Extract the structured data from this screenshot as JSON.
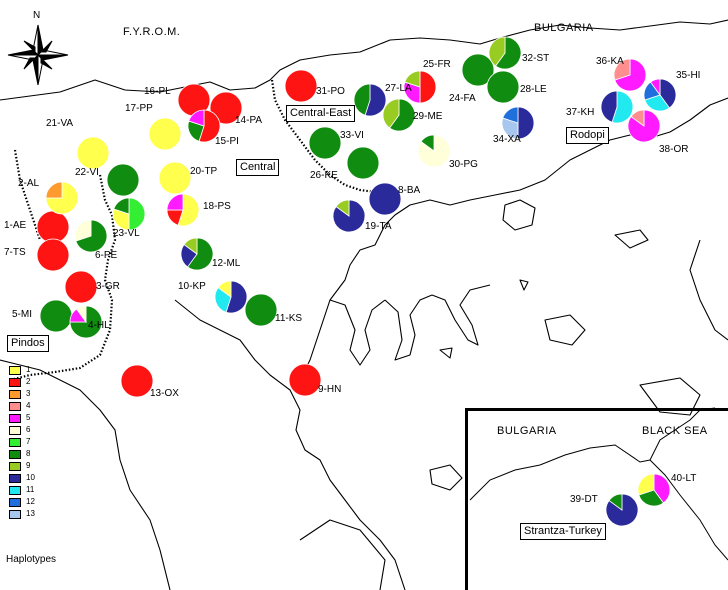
{
  "map": {
    "countries": {
      "fyrom": "F.Y.R.O.M.",
      "bulgaria": "BULGARIA"
    },
    "compass_north": "N",
    "regions": [
      "Central-East",
      "Rodopi",
      "Central",
      "Pindos"
    ],
    "legend_title": "Haplotypes",
    "legend": [
      {
        "label": "1",
        "color": "#ffff4d"
      },
      {
        "label": "2",
        "color": "#ff1414"
      },
      {
        "label": "3",
        "color": "#ff9a2e"
      },
      {
        "label": "4",
        "color": "#ff8f8f"
      },
      {
        "label": "5",
        "color": "#ff1aff"
      },
      {
        "label": "6",
        "color": "#ffffd9"
      },
      {
        "label": "7",
        "color": "#33ee33"
      },
      {
        "label": "8",
        "color": "#108c10"
      },
      {
        "label": "9",
        "color": "#99cc22"
      },
      {
        "label": "10",
        "color": "#2a2a9a"
      },
      {
        "label": "11",
        "color": "#22e8f0"
      },
      {
        "label": "12",
        "color": "#1f6fdd"
      },
      {
        "label": "13",
        "color": "#a7c7ee"
      }
    ],
    "sites": [
      {
        "label": "1-AE",
        "haplotypes": [
          {
            "h": 2,
            "f": 1
          }
        ]
      },
      {
        "label": "7-TS",
        "haplotypes": [
          {
            "h": 2,
            "f": 1
          }
        ]
      },
      {
        "label": "2-AL",
        "haplotypes": [
          {
            "h": 1,
            "f": 0.75
          },
          {
            "h": 3,
            "f": 0.25
          }
        ]
      },
      {
        "label": "3-GR",
        "haplotypes": [
          {
            "h": 2,
            "f": 1
          }
        ]
      },
      {
        "label": "5-MI",
        "haplotypes": [
          {
            "h": 8,
            "f": 1
          }
        ]
      },
      {
        "label": "4-HL",
        "haplotypes": [
          {
            "h": 8,
            "f": 0.75
          },
          {
            "h": 5,
            "f": 0.15
          },
          {
            "h": 6,
            "f": 0.1
          }
        ]
      },
      {
        "label": "6-PE",
        "haplotypes": [
          {
            "h": 8,
            "f": 0.7
          },
          {
            "h": 6,
            "f": 0.3
          }
        ]
      },
      {
        "label": "21-VA",
        "haplotypes": [
          {
            "h": 1,
            "f": 1
          }
        ]
      },
      {
        "label": "22-VI",
        "haplotypes": [
          {
            "h": 8,
            "f": 1
          }
        ]
      },
      {
        "label": "23-VL",
        "haplotypes": [
          {
            "h": 7,
            "f": 0.5
          },
          {
            "h": 1,
            "f": 0.3
          },
          {
            "h": 8,
            "f": 0.2
          }
        ]
      },
      {
        "label": "13-OX",
        "haplotypes": [
          {
            "h": 2,
            "f": 1
          }
        ]
      },
      {
        "label": "16-PL",
        "haplotypes": [
          {
            "h": 2,
            "f": 1
          }
        ]
      },
      {
        "label": "17-PP",
        "haplotypes": [
          {
            "h": 1,
            "f": 1
          }
        ]
      },
      {
        "label": "14-PA",
        "haplotypes": [
          {
            "h": 2,
            "f": 1
          }
        ]
      },
      {
        "label": "15-PI",
        "haplotypes": [
          {
            "h": 2,
            "f": 0.55
          },
          {
            "h": 8,
            "f": 0.25
          },
          {
            "h": 5,
            "f": 0.2
          }
        ]
      },
      {
        "label": "20-TP",
        "haplotypes": [
          {
            "h": 1,
            "f": 1
          }
        ]
      },
      {
        "label": "18-PS",
        "haplotypes": [
          {
            "h": 1,
            "f": 0.55
          },
          {
            "h": 2,
            "f": 0.2
          },
          {
            "h": 5,
            "f": 0.25
          }
        ]
      },
      {
        "label": "12-ML",
        "haplotypes": [
          {
            "h": 8,
            "f": 0.6
          },
          {
            "h": 10,
            "f": 0.25
          },
          {
            "h": 9,
            "f": 0.15
          }
        ]
      },
      {
        "label": "10-KP",
        "haplotypes": [
          {
            "h": 10,
            "f": 0.55
          },
          {
            "h": 11,
            "f": 0.3
          },
          {
            "h": 1,
            "f": 0.15
          }
        ]
      },
      {
        "label": "11-KS",
        "haplotypes": [
          {
            "h": 8,
            "f": 1
          }
        ]
      },
      {
        "label": "9-HN",
        "haplotypes": [
          {
            "h": 2,
            "f": 1
          }
        ]
      },
      {
        "label": "31-PO",
        "haplotypes": [
          {
            "h": 2,
            "f": 1
          }
        ]
      },
      {
        "label": "33-VI",
        "haplotypes": [
          {
            "h": 8,
            "f": 1
          }
        ]
      },
      {
        "label": "26-KE",
        "haplotypes": [
          {
            "h": 8,
            "f": 1
          }
        ]
      },
      {
        "label": "27-LA",
        "haplotypes": [
          {
            "h": 10,
            "f": 0.55
          },
          {
            "h": 8,
            "f": 0.45
          }
        ]
      },
      {
        "label": "29-ME",
        "haplotypes": [
          {
            "h": 8,
            "f": 0.6
          },
          {
            "h": 9,
            "f": 0.4
          }
        ]
      },
      {
        "label": "25-FR",
        "haplotypes": [
          {
            "h": 2,
            "f": 0.5
          },
          {
            "h": 5,
            "f": 0.3
          },
          {
            "h": 9,
            "f": 0.2
          }
        ]
      },
      {
        "label": "24-FA",
        "haplotypes": [
          {
            "h": 8,
            "f": 1
          }
        ]
      },
      {
        "label": "30-PG",
        "haplotypes": [
          {
            "h": 6,
            "f": 0.85
          },
          {
            "h": 8,
            "f": 0.15
          }
        ]
      },
      {
        "label": "8-BA",
        "haplotypes": [
          {
            "h": 10,
            "f": 1
          }
        ]
      },
      {
        "label": "19-TA",
        "haplotypes": [
          {
            "h": 10,
            "f": 0.85
          },
          {
            "h": 9,
            "f": 0.15
          }
        ]
      },
      {
        "label": "32-ST",
        "haplotypes": [
          {
            "h": 8,
            "f": 0.6
          },
          {
            "h": 9,
            "f": 0.4
          }
        ]
      },
      {
        "label": "28-LE",
        "haplotypes": [
          {
            "h": 8,
            "f": 1
          }
        ]
      },
      {
        "label": "34-XA",
        "haplotypes": [
          {
            "h": 10,
            "f": 0.5
          },
          {
            "h": 13,
            "f": 0.3
          },
          {
            "h": 12,
            "f": 0.2
          }
        ]
      },
      {
        "label": "36-KA",
        "haplotypes": [
          {
            "h": 5,
            "f": 0.7
          },
          {
            "h": 4,
            "f": 0.3
          }
        ]
      },
      {
        "label": "35-HI",
        "haplotypes": [
          {
            "h": 10,
            "f": 0.4
          },
          {
            "h": 11,
            "f": 0.3
          },
          {
            "h": 12,
            "f": 0.2
          },
          {
            "h": 5,
            "f": 0.1
          }
        ]
      },
      {
        "label": "37-KH",
        "haplotypes": [
          {
            "h": 11,
            "f": 0.55
          },
          {
            "h": 10,
            "f": 0.45
          }
        ]
      },
      {
        "label": "38-OR",
        "haplotypes": [
          {
            "h": 5,
            "f": 0.85
          },
          {
            "h": 4,
            "f": 0.15
          }
        ]
      }
    ],
    "inset": {
      "countries": {
        "bulgaria": "BULGARIA",
        "sea": "BLACK SEA"
      },
      "region": "Strantza-Turkey",
      "sites": [
        {
          "label": "39-DT",
          "haplotypes": [
            {
              "h": 10,
              "f": 0.85
            },
            {
              "h": 8,
              "f": 0.15
            }
          ]
        },
        {
          "label": "40-LT",
          "haplotypes": [
            {
              "h": 5,
              "f": 0.4
            },
            {
              "h": 8,
              "f": 0.3
            },
            {
              "h": 1,
              "f": 0.3
            }
          ]
        }
      ]
    }
  }
}
